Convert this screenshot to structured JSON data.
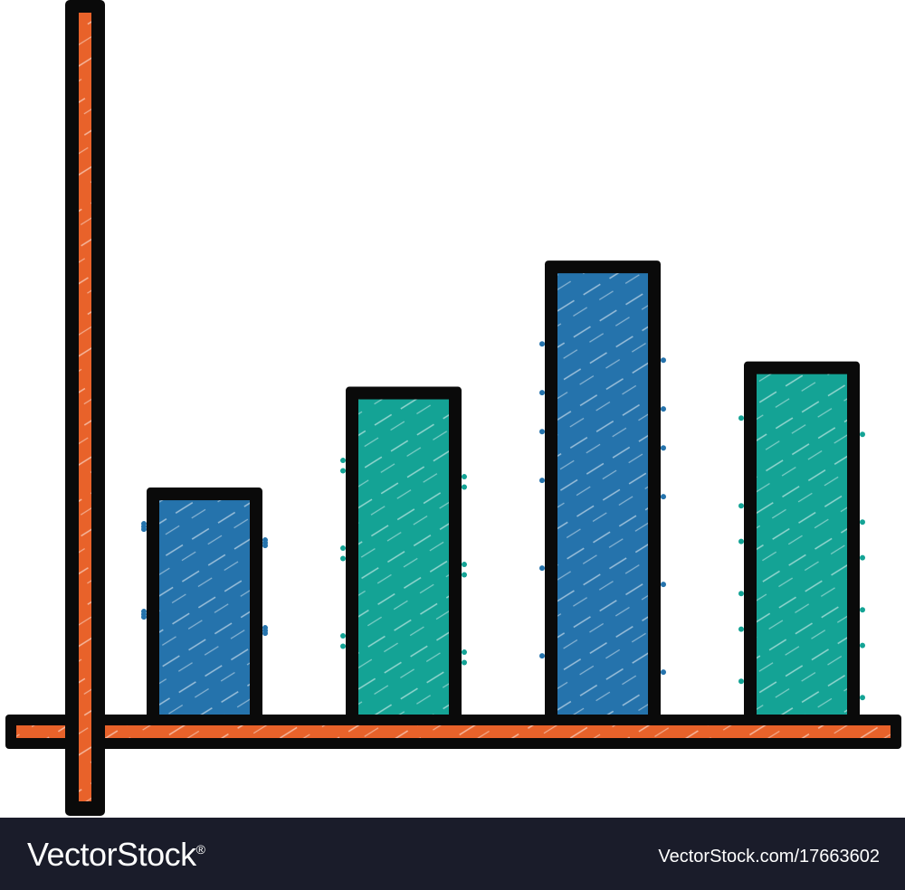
{
  "colors": {
    "axis": "#e8622a",
    "outline": "#0a0a0a",
    "blue": "#2573ac",
    "teal": "#14a395",
    "footer_bg": "#1a1c2a"
  },
  "chart_data": {
    "type": "bar",
    "categories": [
      "",
      "",
      "",
      ""
    ],
    "values": [
      2.7,
      3.9,
      5.4,
      4.2
    ],
    "bar_colors": [
      "blue",
      "teal",
      "blue",
      "teal"
    ],
    "title": "",
    "xlabel": "",
    "ylabel": "",
    "ylim": [
      0,
      8.5
    ],
    "grid": false,
    "legend": "none"
  },
  "footer": {
    "brand": "VectorStock",
    "registered": "®",
    "image_id": "VectorStock.com/17663602"
  }
}
